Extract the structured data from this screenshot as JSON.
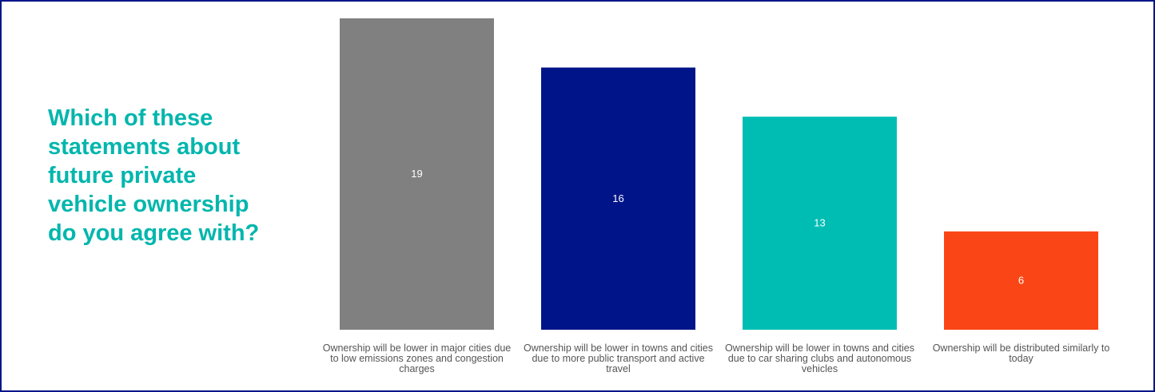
{
  "question": "Which of these\nstatements about\nfuture private\nvehicle ownership\ndo you agree with?",
  "colors": {
    "accent": "#00b6ad",
    "border": "#001489"
  },
  "chart_data": {
    "type": "bar",
    "categories": [
      "Ownership will be lower in major cities due to low emissions zones and congestion charges",
      "Ownership will be lower in towns and cities due to more public transport and active travel",
      "Ownership will be lower in towns and cities due to car sharing clubs and autonomous vehicles",
      "Ownership will be distributed similarly to today"
    ],
    "values": [
      19,
      16,
      13,
      6
    ],
    "colors": [
      "#808080",
      "#001489",
      "#00bdb4",
      "#fa4616"
    ],
    "data_labels": [
      "19",
      "16",
      "13",
      "6"
    ],
    "ylim": [
      0,
      19
    ],
    "grid": false,
    "legend": "none"
  }
}
